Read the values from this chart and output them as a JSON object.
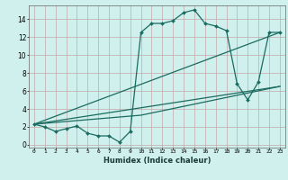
{
  "xlabel": "Humidex (Indice chaleur)",
  "bg_color": "#cff0ec",
  "grid_color": "#c4a8a8",
  "line_color": "#1a6b60",
  "xlim": [
    -0.5,
    23.5
  ],
  "ylim": [
    -0.3,
    15.5
  ],
  "x_ticks": [
    0,
    1,
    2,
    3,
    4,
    5,
    6,
    7,
    8,
    9,
    10,
    11,
    12,
    13,
    14,
    15,
    16,
    17,
    18,
    19,
    20,
    21,
    22,
    23
  ],
  "y_ticks": [
    0,
    2,
    4,
    6,
    8,
    10,
    12,
    14
  ],
  "series1_x": [
    0,
    1,
    2,
    3,
    4,
    5,
    6,
    7,
    8,
    9,
    10,
    11,
    12,
    13,
    14,
    15,
    16,
    17,
    18,
    19,
    20,
    21,
    22,
    23
  ],
  "series1_y": [
    2.3,
    2.0,
    1.5,
    1.8,
    2.1,
    1.3,
    1.0,
    1.0,
    0.3,
    1.5,
    12.5,
    13.5,
    13.5,
    13.8,
    14.7,
    15.0,
    13.5,
    13.2,
    12.7,
    6.8,
    5.0,
    7.0,
    12.5,
    12.5
  ],
  "series2_x": [
    0,
    23
  ],
  "series2_y": [
    2.3,
    12.5
  ],
  "series3_x": [
    0,
    23
  ],
  "series3_y": [
    2.3,
    6.5
  ],
  "series4_x": [
    0,
    10,
    23
  ],
  "series4_y": [
    2.3,
    3.3,
    6.5
  ]
}
